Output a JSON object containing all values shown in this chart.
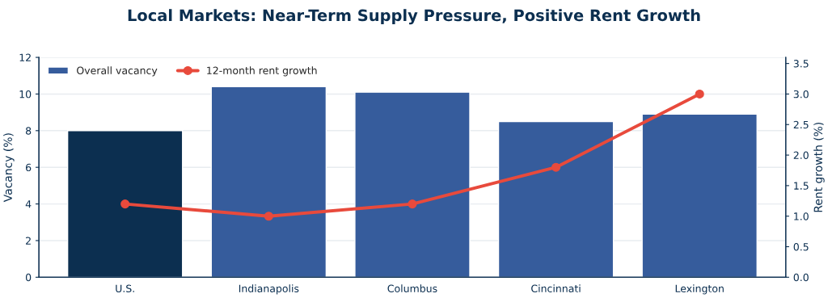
{
  "chart_data": {
    "type": "bar",
    "title": "Local Markets: Near-Term Supply Pressure, Positive Rent Growth",
    "categories": [
      "U.S.",
      "Indianapolis",
      "Columbus",
      "Cincinnati",
      "Lexington"
    ],
    "series": [
      {
        "name": "Overall vacancy",
        "colors": [
          "#0c2f50",
          "#365c9c",
          "#365c9c",
          "#365c9c",
          "#365c9c"
        ],
        "color": "#365c9c",
        "values": [
          8.0,
          10.4,
          10.1,
          8.5,
          8.9
        ]
      },
      {
        "name": "12-month rent growth",
        "type": "line",
        "axis": "y2",
        "color": "#e84a3c",
        "marker": "circle",
        "values": [
          1.2,
          1.0,
          1.2,
          1.8,
          3.0
        ]
      }
    ],
    "ylabel": "Vacancy (%)",
    "y2label": "Rent growth (%)",
    "ylim": [
      0,
      12
    ],
    "yticks": [
      0,
      2,
      4,
      6,
      8,
      10,
      12
    ],
    "y2lim": [
      0,
      3.6
    ],
    "y2ticks": [
      {
        "value": 0,
        "label": "0.0"
      },
      {
        "value": 0.5,
        "label": "0.5"
      },
      {
        "value": 1,
        "label": "1.0"
      },
      {
        "value": 1.5,
        "label": "1.5"
      },
      {
        "value": 2,
        "label": "2.0"
      },
      {
        "value": 2.5,
        "label": "2.5"
      },
      {
        "value": 3,
        "label": "3.0"
      },
      {
        "value": 3.5,
        "label": "3.5"
      }
    ],
    "grid": "y",
    "legend": "top left"
  }
}
